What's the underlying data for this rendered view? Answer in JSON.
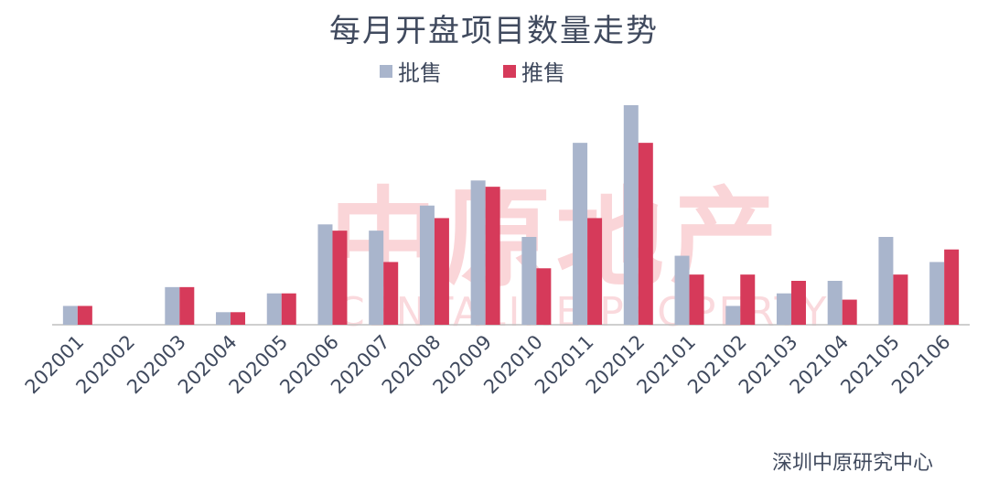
{
  "chart_data": {
    "type": "bar",
    "title": "每月开盘项目数量走势",
    "categories": [
      "202001",
      "202002",
      "202003",
      "202004",
      "202005",
      "202006",
      "202007",
      "202008",
      "202009",
      "202010",
      "202011",
      "202012",
      "202101",
      "202102",
      "202103",
      "202104",
      "202105",
      "202106"
    ],
    "series": [
      {
        "name": "批售",
        "color": "#a9b5cc",
        "values": [
          3,
          0,
          6,
          2,
          5,
          16,
          15,
          19,
          23,
          14,
          29,
          35,
          11,
          3,
          5,
          7,
          14,
          10
        ]
      },
      {
        "name": "推售",
        "color": "#d63a5a",
        "values": [
          3,
          0,
          6,
          2,
          5,
          15,
          10,
          17,
          22,
          9,
          17,
          29,
          8,
          8,
          7,
          4,
          8,
          12
        ]
      }
    ],
    "xlabel": "",
    "ylabel": "",
    "ylim": [
      0,
      35
    ],
    "grid": false,
    "legend_position": "top"
  },
  "watermark": {
    "main": "中原地产",
    "sub": "CENTALINE PROPERTY"
  },
  "source": "深圳中原研究中心"
}
